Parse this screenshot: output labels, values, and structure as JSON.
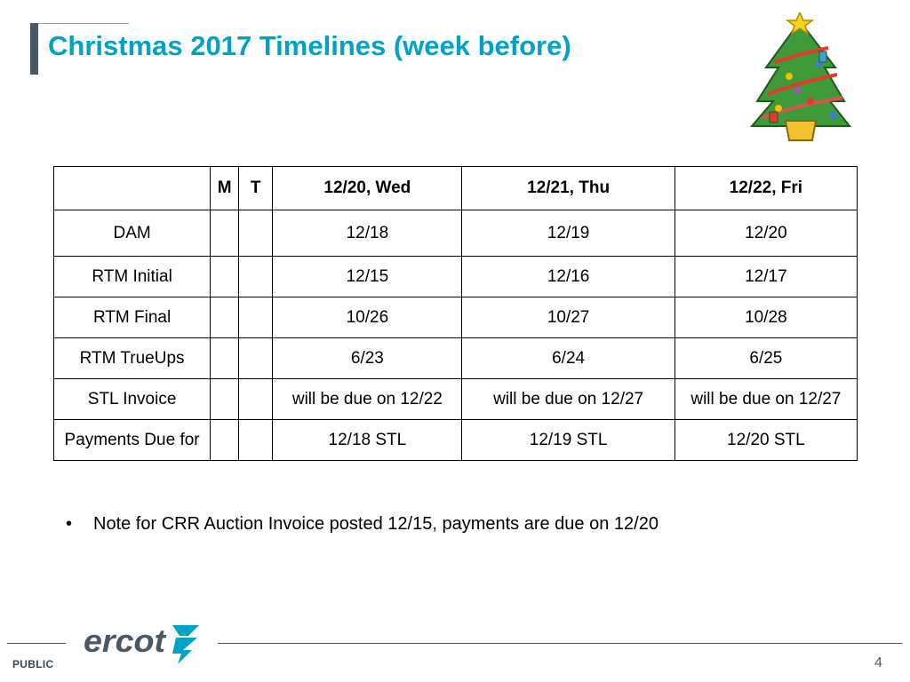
{
  "slide": {
    "title": "Christmas 2017 Timelines (week before)",
    "page_number": "4",
    "classification": "PUBLIC",
    "logo_text": "ercot",
    "accent_color": "#00a3c4",
    "decoration": "christmas-tree-icon"
  },
  "table": {
    "headers": [
      "",
      "M",
      "T",
      "12/20, Wed",
      "12/21, Thu",
      "12/22, Fri"
    ],
    "rows": [
      {
        "label": "DAM",
        "m": "",
        "t": "",
        "wed": "12/18",
        "thu": "12/19",
        "fri": "12/20"
      },
      {
        "label": "RTM Initial",
        "m": "",
        "t": "",
        "wed": "12/15",
        "thu": "12/16",
        "fri": "12/17"
      },
      {
        "label": "RTM Final",
        "m": "",
        "t": "",
        "wed": "10/26",
        "thu": "10/27",
        "fri": "10/28"
      },
      {
        "label": "RTM TrueUps",
        "m": "",
        "t": "",
        "wed": "6/23",
        "thu": "6/24",
        "fri": "6/25"
      },
      {
        "label": "STL Invoice",
        "m": "",
        "t": "",
        "wed": "will be due on 12/22",
        "thu": "will be due on 12/27",
        "fri": "will be due on 12/27"
      },
      {
        "label": "Payments Due for",
        "m": "",
        "t": "",
        "wed": "12/18 STL",
        "thu": "12/19 STL",
        "fri": "12/20 STL"
      }
    ]
  },
  "note": {
    "bullet": "•",
    "text": "Note for CRR Auction Invoice posted 12/15, payments are due on 12/20"
  }
}
